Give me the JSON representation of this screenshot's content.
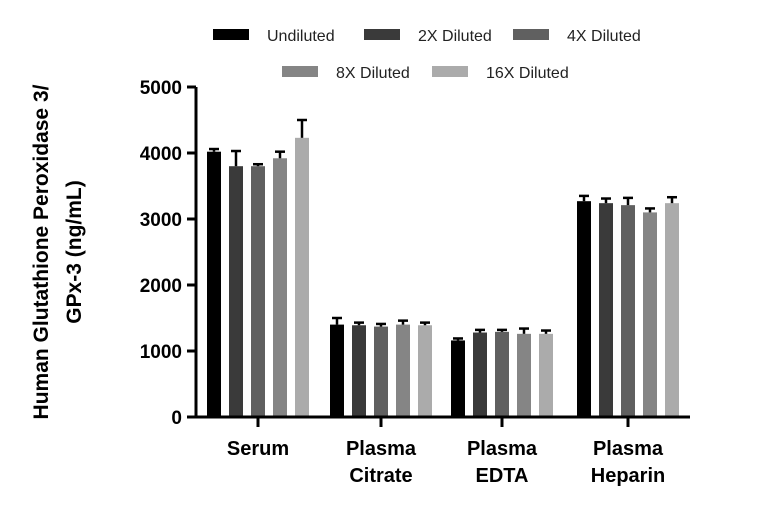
{
  "chart_data": {
    "type": "bar",
    "ylabel": "Human Glutathione Peroxidase 3/ GPx-3 (ng/mL)",
    "ylabel_lines": [
      "Human Glutathione Peroxidase 3/",
      "GPx-3 (ng/mL)"
    ],
    "xlabel": "",
    "ylim": [
      0,
      5000
    ],
    "yticks": [
      0,
      1000,
      2000,
      3000,
      4000,
      5000
    ],
    "grid": false,
    "legend_position": "top",
    "categories": [
      [
        "Serum"
      ],
      [
        "Plasma",
        "Citrate"
      ],
      [
        "Plasma",
        "EDTA"
      ],
      [
        "Plasma",
        "Heparin"
      ]
    ],
    "series": [
      {
        "name": "Undiluted",
        "color": "#000000",
        "values": [
          4020,
          1400,
          1160,
          3270
        ],
        "errors": [
          40,
          100,
          30,
          80
        ]
      },
      {
        "name": "2X Diluted",
        "color": "#3a3a3a",
        "values": [
          3800,
          1390,
          1280,
          3240
        ],
        "errors": [
          230,
          40,
          40,
          70
        ]
      },
      {
        "name": "4X Diluted",
        "color": "#606060",
        "values": [
          3800,
          1370,
          1290,
          3210
        ],
        "errors": [
          30,
          40,
          30,
          110
        ]
      },
      {
        "name": "8X Diluted",
        "color": "#858585",
        "values": [
          3920,
          1400,
          1260,
          3100
        ],
        "errors": [
          100,
          60,
          80,
          60
        ]
      },
      {
        "name": "16X Diluted",
        "color": "#ababab",
        "values": [
          4230,
          1390,
          1260,
          3240
        ],
        "errors": [
          270,
          40,
          50,
          90
        ]
      }
    ]
  }
}
